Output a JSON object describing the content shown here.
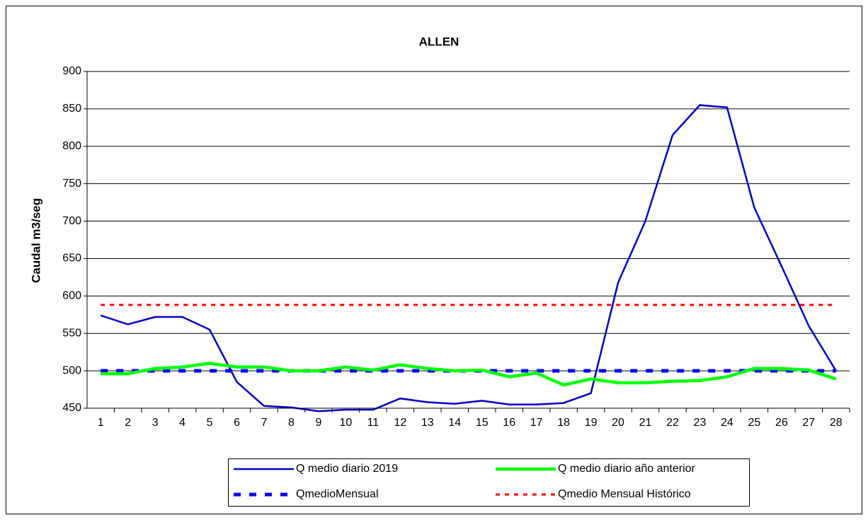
{
  "chart_data": {
    "type": "line",
    "title": "ALLEN",
    "y_label": "Caudal m3/seg",
    "categories": [
      "1",
      "2",
      "3",
      "4",
      "5",
      "6",
      "7",
      "8",
      "9",
      "10",
      "11",
      "12",
      "13",
      "14",
      "15",
      "16",
      "17",
      "18",
      "19",
      "20",
      "21",
      "22",
      "23",
      "24",
      "25",
      "26",
      "27",
      "28"
    ],
    "ylim": [
      450,
      900
    ],
    "yticks": [
      450,
      500,
      550,
      600,
      650,
      700,
      750,
      800,
      850,
      900
    ],
    "grid": true,
    "legend": "bottom",
    "series": [
      {
        "name": "Q medio diario 2019",
        "color": "#0000cc",
        "style": "solid",
        "values": [
          574,
          562,
          572,
          572,
          555,
          485,
          453,
          451,
          446,
          448,
          448,
          463,
          458,
          456,
          460,
          455,
          455,
          457,
          470,
          618,
          700,
          815,
          855,
          852,
          718,
          640,
          560,
          500
        ]
      },
      {
        "name": "Q medio diario año anterior",
        "color": "#00ff00",
        "style": "thick",
        "values": [
          496,
          496,
          503,
          505,
          510,
          505,
          505,
          500,
          500,
          505,
          501,
          508,
          503,
          500,
          501,
          492,
          497,
          481,
          489,
          484,
          484,
          486,
          487,
          492,
          503,
          503,
          501,
          489
        ]
      },
      {
        "name": "QmedioMensual",
        "color": "#0000ff",
        "style": "dashed",
        "values": [
          500,
          500,
          500,
          500,
          500,
          500,
          500,
          500,
          500,
          500,
          500,
          500,
          500,
          500,
          500,
          500,
          500,
          500,
          500,
          500,
          500,
          500,
          500,
          500,
          500,
          500,
          500,
          500
        ]
      },
      {
        "name": "Qmedio Mensual Histórico",
        "color": "#ff0000",
        "style": "dotted",
        "values": [
          588,
          588,
          588,
          588,
          588,
          588,
          588,
          588,
          588,
          588,
          588,
          588,
          588,
          588,
          588,
          588,
          588,
          588,
          588,
          588,
          588,
          588,
          588,
          588,
          588,
          588,
          588,
          588
        ]
      }
    ]
  }
}
